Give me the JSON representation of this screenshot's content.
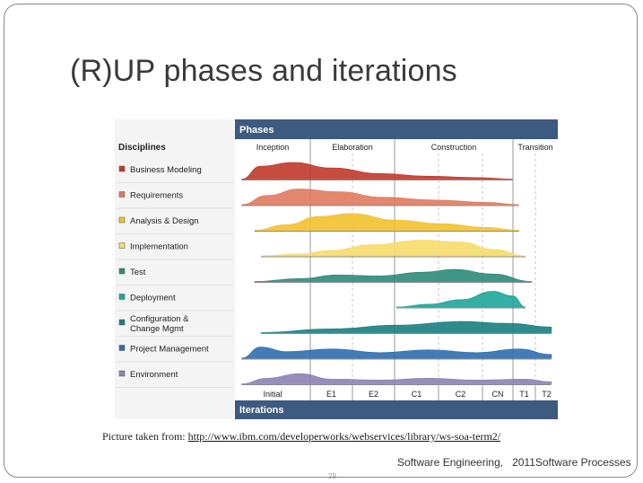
{
  "slide": {
    "title": "(R)UP phases and iterations",
    "caption_prefix": "Picture taken from: ",
    "caption_link": "http://www.ibm.com/developerworks/webservices/library/ws-soa-term2/",
    "footer_left": "Software Engineering,",
    "footer_right": "2011Software Processes",
    "page_number": "29"
  },
  "diagram": {
    "phases_header": "Phases",
    "disciplines_header": "Disciplines",
    "iterations_header": "Iterations",
    "phases": [
      "Inception",
      "Elaboration",
      "Construction",
      "Transition"
    ],
    "iterations": [
      "Initial",
      "E1",
      "E2",
      "C1",
      "C2",
      "CN",
      "T1",
      "T2"
    ],
    "disciplines": [
      {
        "label": "Business Modeling",
        "color": "#c0392b"
      },
      {
        "label": "Requirements",
        "color": "#e07a5f"
      },
      {
        "label": "Analysis & Design",
        "color": "#f2c12e"
      },
      {
        "label": "Implementation",
        "color": "#f6dc6a"
      },
      {
        "label": "Test",
        "color": "#2e8b7a"
      },
      {
        "label": "Deployment",
        "color": "#1fa59a"
      },
      {
        "label": "Configuration & Change Mgmt",
        "color": "#1a7f80"
      },
      {
        "label": "Project Management",
        "color": "#2f6fb0"
      },
      {
        "label": "Environment",
        "color": "#8d82b5"
      }
    ],
    "colors": {
      "header_bg": "#3d5a80",
      "header_text": "#ffffff",
      "panel_bg": "#f4f4f4"
    }
  }
}
